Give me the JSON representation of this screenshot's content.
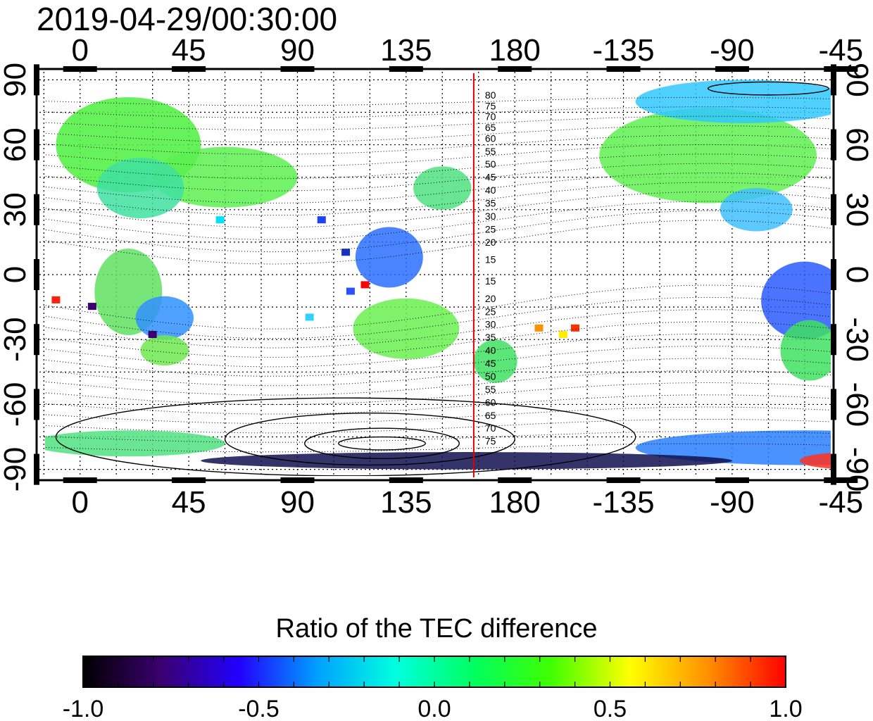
{
  "header": {
    "timestamp": "2019-04-29/00:30:00"
  },
  "map": {
    "top_lon_labels": [
      "0",
      "45",
      "90",
      "135",
      "180",
      "-135",
      "-90",
      "-45"
    ],
    "bottom_lon_labels": [
      "0",
      "45",
      "90",
      "135",
      "180",
      "-135",
      "-90",
      "-45"
    ],
    "left_lat_labels": [
      "90",
      "60",
      "30",
      "0",
      "-30",
      "-60",
      "-90"
    ],
    "right_lat_labels": [
      "90",
      "60",
      "30",
      "0",
      "-30",
      "-60",
      "-90"
    ],
    "lon_ticks": [
      0,
      45,
      90,
      135,
      180,
      225,
      270,
      315
    ],
    "lat_ticks": [
      90,
      60,
      30,
      0,
      -30,
      -60,
      -90
    ],
    "lon_range": [
      -18,
      312
    ],
    "lat_range": [
      -95,
      95
    ],
    "terminator_lon": 163,
    "contour_labels_north": [
      "80",
      "75",
      "70",
      "65",
      "60",
      "55",
      "50",
      "45",
      "40",
      "35",
      "30",
      "25",
      "20",
      "15"
    ],
    "contour_labels_south": [
      "15",
      "20",
      "25",
      "30",
      "35",
      "40",
      "45",
      "50",
      "55",
      "60",
      "65",
      "70",
      "75"
    ],
    "terminator_color": "#e00000"
  },
  "colorbar": {
    "title": "Ratio of the TEC difference",
    "tick_labels": [
      "-1.0",
      "-0.5",
      "0.0",
      "0.5",
      "1.0"
    ],
    "range": [
      -1.0,
      1.0
    ],
    "stops": [
      "#000000",
      "#3a006e",
      "#2200ff",
      "#00a0ff",
      "#00ffe0",
      "#00ff60",
      "#40ff00",
      "#ffff00",
      "#ff9000",
      "#ff0000"
    ]
  }
}
